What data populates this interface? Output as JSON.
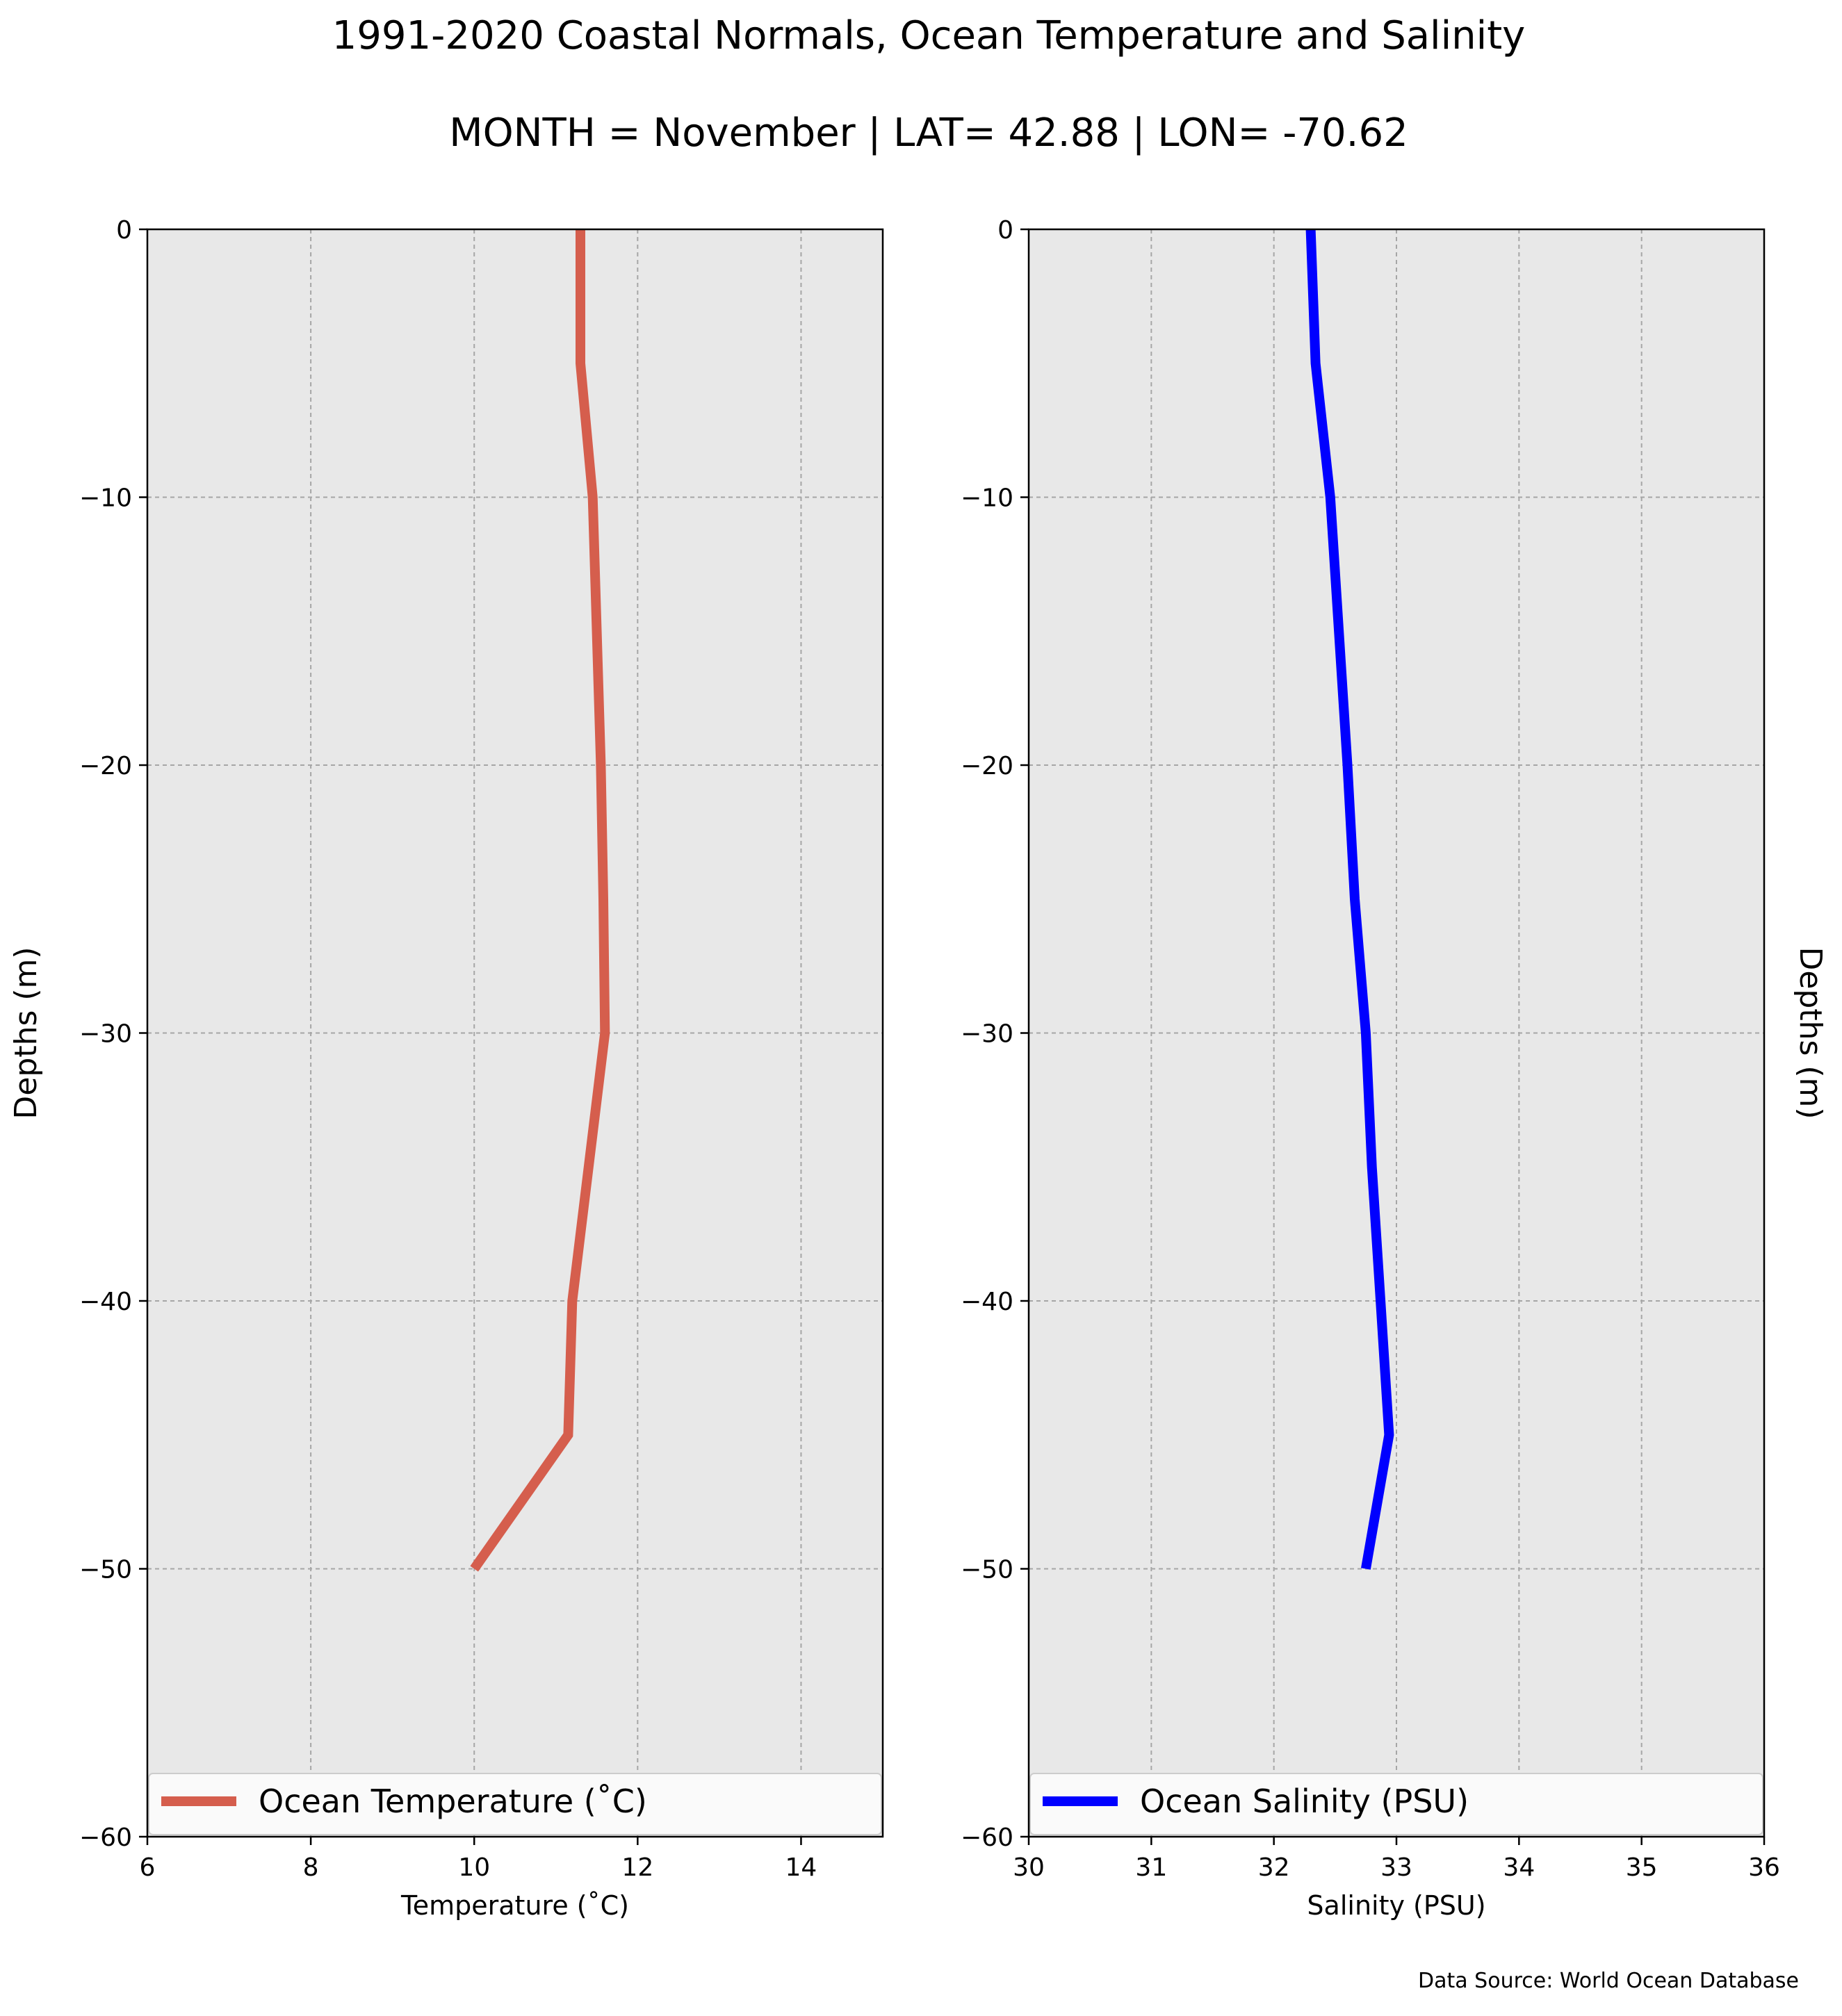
{
  "title_line1": "1991-2020 Coastal Normals, Ocean Temperature and Salinity",
  "title_line2": "MONTH = November | LAT= 42.88 | LON= -70.62",
  "source": "Data Source: World Ocean Database",
  "colors": {
    "panel_background": "#e8e8e8",
    "grid": "#a6a6a6",
    "temperature_line": "#d55e4d",
    "salinity_line": "#0000ff"
  },
  "chart_data": [
    {
      "type": "line",
      "xlabel": "Temperature ($^\\circ$C)",
      "xlabel_text": "Temperature (˚C)",
      "ylabel": "Depths (m)",
      "xlim": [
        6,
        15
      ],
      "ylim": [
        -60,
        0
      ],
      "xticks": [
        6,
        8,
        10,
        12,
        14
      ],
      "xtick_labels": [
        "6",
        "8",
        "10",
        "12",
        "14"
      ],
      "yticks": [
        0,
        -10,
        -20,
        -30,
        -40,
        -50,
        -60
      ],
      "ytick_labels": [
        "0",
        "−10",
        "−20",
        "−30",
        "−40",
        "−50",
        "−60"
      ],
      "grid": true,
      "legend": "bottom",
      "series": [
        {
          "name": "Ocean Temperature (˚C)",
          "color": "#d55e4d",
          "x": [
            11.3,
            11.3,
            11.45,
            11.55,
            11.58,
            11.6,
            11.4,
            11.2,
            11.15,
            10.0
          ],
          "y": [
            0,
            -5,
            -10,
            -20,
            -25,
            -30,
            -35,
            -40,
            -45,
            -50
          ]
        }
      ]
    },
    {
      "type": "line",
      "xlabel": "Salinity (PSU)",
      "ylabel": "Depths (m)",
      "xlim": [
        30,
        36
      ],
      "ylim": [
        -60,
        0
      ],
      "xticks": [
        30,
        31,
        32,
        33,
        34,
        35,
        36
      ],
      "xtick_labels": [
        "30",
        "31",
        "32",
        "33",
        "34",
        "35",
        "36"
      ],
      "yticks": [
        0,
        -10,
        -20,
        -30,
        -40,
        -50,
        -60
      ],
      "ytick_labels": [
        "0",
        "−10",
        "−20",
        "−30",
        "−40",
        "−50",
        "−60"
      ],
      "grid": true,
      "legend": "bottom",
      "series": [
        {
          "name": "Ocean Salinity (PSU)",
          "color": "#0000ff",
          "x": [
            32.3,
            32.34,
            32.46,
            32.6,
            32.66,
            32.75,
            32.8,
            32.87,
            32.94,
            32.75
          ],
          "y": [
            0,
            -5,
            -10,
            -20,
            -25,
            -30,
            -35,
            -40,
            -45,
            -50
          ]
        }
      ]
    }
  ]
}
